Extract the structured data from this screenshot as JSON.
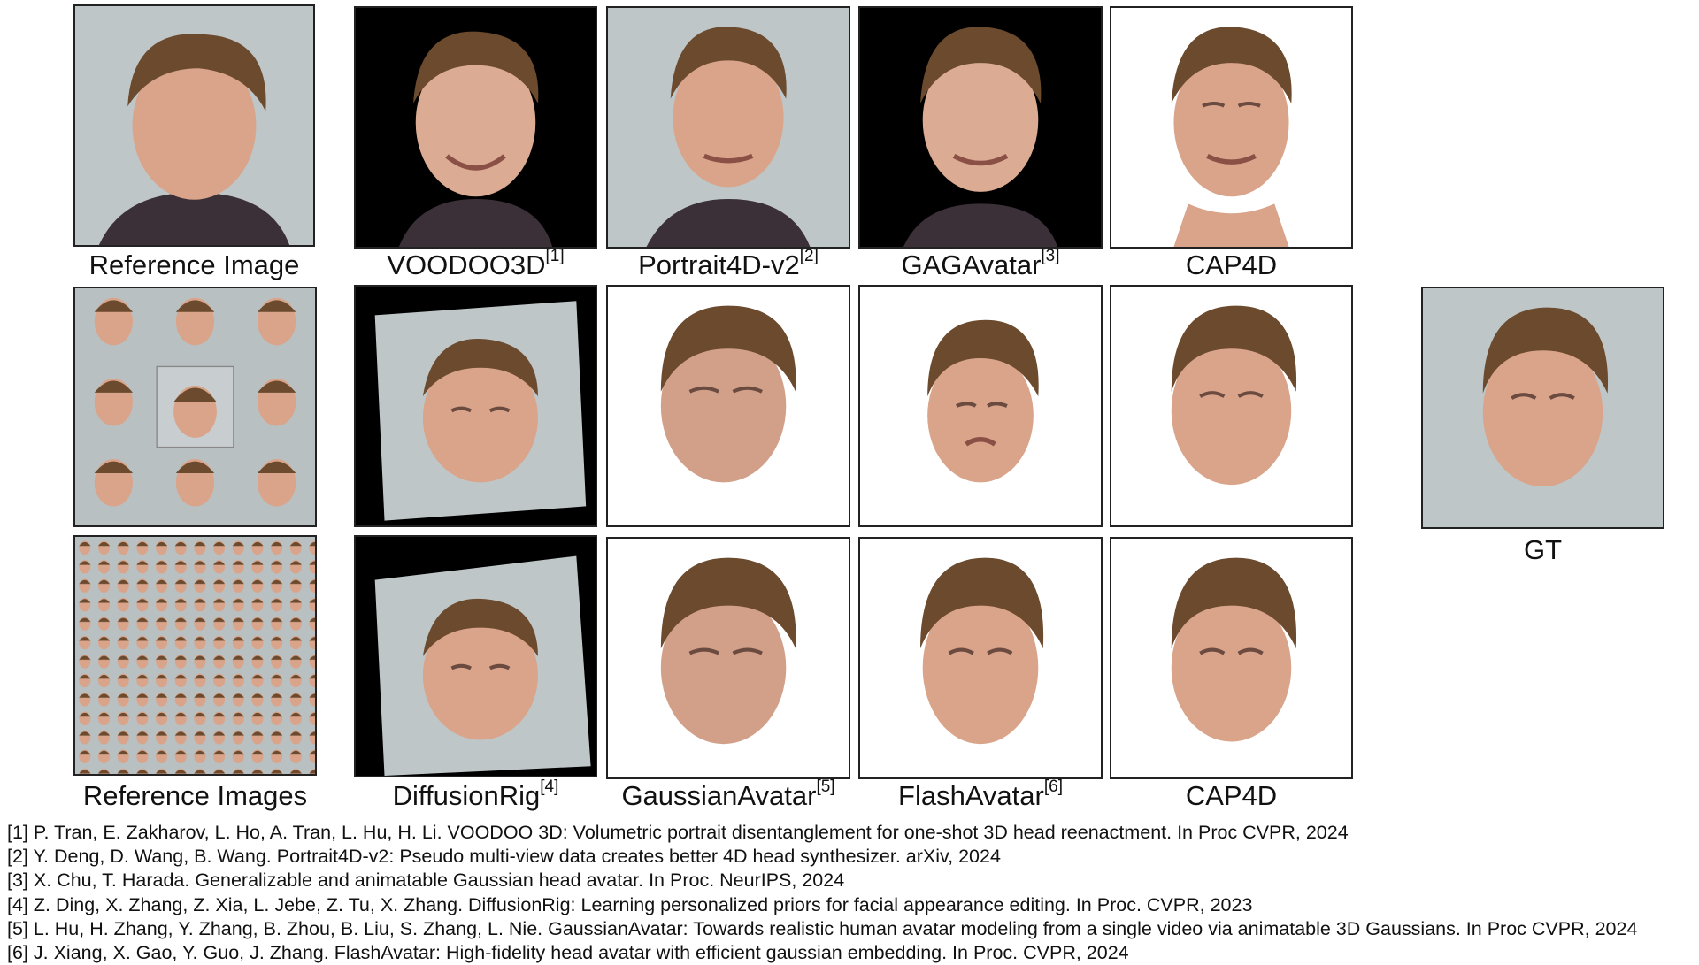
{
  "rows": [
    {
      "reference_label": "Reference Image",
      "methods": [
        {
          "name": "VOODOO3D",
          "cite": "[1]"
        },
        {
          "name": "Portrait4D-v2",
          "cite": "[2]"
        },
        {
          "name": "GAGAvatar",
          "cite": "[3]"
        },
        {
          "name": "CAP4D",
          "cite": ""
        }
      ]
    },
    {
      "reference_label": "",
      "methods": []
    },
    {
      "reference_label": "Reference Images",
      "methods": [
        {
          "name": "DiffusionRig",
          "cite": "[4]"
        },
        {
          "name": "GaussianAvatar",
          "cite": "[5]"
        },
        {
          "name": "FlashAvatar",
          "cite": "[6]"
        },
        {
          "name": "CAP4D",
          "cite": ""
        }
      ]
    }
  ],
  "gt_label": "GT",
  "references": [
    "[1] P. Tran, E. Zakharov, L. Ho, A. Tran, L. Hu,  H. Li. VOODOO 3D: Volumetric portrait disentanglement for one-shot 3D head reenactment. In Proc CVPR, 2024",
    "[2] Y. Deng, D. Wang, B. Wang. Portrait4D-v2: Pseudo multi-view data creates better 4D head synthesizer. arXiv, 2024",
    "[3] X. Chu, T. Harada. Generalizable and animatable Gaussian head  avatar. In Proc. NeurIPS, 2024",
    "[4] Z. Ding, X. Zhang, Z. Xia, L. Jebe, Z. Tu, X. Zhang. DiffusionRig: Learning personalized priors for facial appearance editing. In Proc. CVPR, 2023",
    "[5] L. Hu, H. Zhang, Y. Zhang, B. Zhou, B. Liu, S. Zhang, L. Nie. GaussianAvatar: Towards realistic human avatar modeling from a single video via animatable 3D Gaussians. In Proc CVPR, 2024",
    "[6] J. Xiang, X. Gao, Y. Guo, J. Zhang. FlashAvatar: High-fidelity head avatar with efficient gaussian embedding. In Proc. CVPR, 2024"
  ],
  "colors": {
    "hair": "#6b4a2e",
    "skin": "#d9a48a",
    "studio_gray": "#bfc6c8",
    "shirt": "#3b3038"
  }
}
